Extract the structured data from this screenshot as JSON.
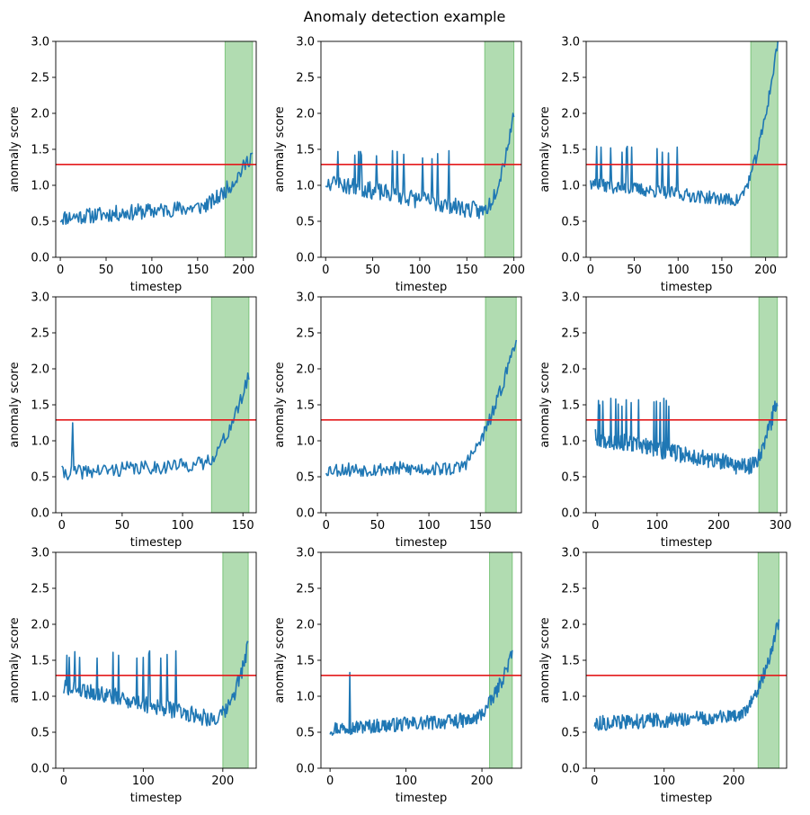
{
  "figure": {
    "title": "Anomaly detection example"
  },
  "colors": {
    "series": "#1f77b4",
    "threshold": "#e41a1c",
    "anomaly_region": "#2ca02c",
    "axes": "#000000"
  },
  "chart_data": [
    {
      "type": "line",
      "xlabel": "timestep",
      "ylabel": "anomaly score",
      "xlim": [
        -5,
        214
      ],
      "ylim": [
        0,
        3
      ],
      "xticks": [
        0,
        50,
        100,
        150,
        200
      ],
      "yticks": [
        0.0,
        0.5,
        1.0,
        1.5,
        2.0,
        2.5,
        3.0
      ],
      "threshold": 1.29,
      "anomaly_region": [
        180,
        210
      ],
      "pattern": {
        "n": 210,
        "base": 0.55,
        "end_base": 0.75,
        "rise_start": 150,
        "end_value": 1.45,
        "noise": 0.11,
        "spike_count": 0,
        "spike_height": 0,
        "spike_until": 0,
        "seed": 11
      },
      "series": [
        {
          "values": []
        }
      ]
    },
    {
      "type": "line",
      "xlabel": "timestep",
      "ylabel": "anomaly score",
      "xlim": [
        -5,
        208
      ],
      "ylim": [
        0,
        3
      ],
      "xticks": [
        0,
        50,
        100,
        150,
        200
      ],
      "yticks": [
        0.0,
        0.5,
        1.0,
        1.5,
        2.0,
        2.5,
        3.0
      ],
      "threshold": 1.29,
      "anomaly_region": [
        169,
        200
      ],
      "pattern": {
        "n": 200,
        "base": 1.05,
        "end_base": 0.55,
        "rise_start": 165,
        "end_value": 2.0,
        "noise": 0.12,
        "spike_count": 14,
        "spike_height": 1.48,
        "spike_until": 145,
        "seed": 23
      },
      "series": [
        {
          "values": []
        }
      ]
    },
    {
      "type": "line",
      "xlabel": "timestep",
      "ylabel": "anomaly score",
      "xlim": [
        -5,
        224
      ],
      "ylim": [
        0,
        3
      ],
      "xticks": [
        0,
        50,
        100,
        150,
        200
      ],
      "yticks": [
        0.0,
        0.5,
        1.0,
        1.5,
        2.0,
        2.5,
        3.0
      ],
      "threshold": 1.29,
      "anomaly_region": [
        183,
        214
      ],
      "pattern": {
        "n": 214,
        "base": 1.02,
        "end_base": 0.72,
        "rise_start": 165,
        "end_value": 3.0,
        "noise": 0.09,
        "spike_count": 12,
        "spike_height": 1.55,
        "spike_until": 140,
        "seed": 37
      },
      "series": [
        {
          "values": []
        }
      ]
    },
    {
      "type": "line",
      "xlabel": "timestep",
      "ylabel": "anomaly score",
      "xlim": [
        -5,
        161
      ],
      "ylim": [
        0,
        3
      ],
      "xticks": [
        0,
        50,
        100,
        150
      ],
      "yticks": [
        0.0,
        0.5,
        1.0,
        1.5,
        2.0,
        2.5,
        3.0
      ],
      "threshold": 1.29,
      "anomaly_region": [
        124,
        155
      ],
      "pattern": {
        "n": 155,
        "base": 0.55,
        "end_base": 0.72,
        "rise_start": 115,
        "end_value": 1.9,
        "noise": 0.1,
        "spike_count": 1,
        "spike_height": 1.35,
        "spike_until": 30,
        "seed": 41
      },
      "series": [
        {
          "values": []
        }
      ]
    },
    {
      "type": "line",
      "xlabel": "timestep",
      "ylabel": "anomaly score",
      "xlim": [
        -5,
        190
      ],
      "ylim": [
        0,
        3
      ],
      "xticks": [
        0,
        50,
        100,
        150
      ],
      "yticks": [
        0.0,
        0.5,
        1.0,
        1.5,
        2.0,
        2.5,
        3.0
      ],
      "threshold": 1.29,
      "anomaly_region": [
        155,
        185
      ],
      "pattern": {
        "n": 185,
        "base": 0.6,
        "end_base": 0.62,
        "rise_start": 125,
        "end_value": 2.45,
        "noise": 0.1,
        "spike_count": 0,
        "spike_height": 0,
        "spike_until": 0,
        "seed": 53
      },
      "series": [
        {
          "values": []
        }
      ]
    },
    {
      "type": "line",
      "xlabel": "timestep",
      "ylabel": "anomaly score",
      "xlim": [
        -15,
        310
      ],
      "ylim": [
        0,
        3
      ],
      "xticks": [
        0,
        100,
        200,
        300
      ],
      "yticks": [
        0.0,
        0.5,
        1.0,
        1.5,
        2.0,
        2.5,
        3.0
      ],
      "threshold": 1.29,
      "anomaly_region": [
        265,
        295
      ],
      "pattern": {
        "n": 295,
        "base": 1.05,
        "end_base": 0.55,
        "rise_start": 245,
        "end_value": 1.6,
        "noise": 0.12,
        "spike_count": 16,
        "spike_height": 1.6,
        "spike_until": 160,
        "seed": 67
      },
      "series": [
        {
          "values": []
        }
      ]
    },
    {
      "type": "line",
      "xlabel": "timestep",
      "ylabel": "anomaly score",
      "xlim": [
        -10,
        242
      ],
      "ylim": [
        0,
        3
      ],
      "xticks": [
        0,
        100,
        200
      ],
      "yticks": [
        0.0,
        0.5,
        1.0,
        1.5,
        2.0,
        2.5,
        3.0
      ],
      "threshold": 1.29,
      "anomaly_region": [
        200,
        232
      ],
      "pattern": {
        "n": 232,
        "base": 1.15,
        "end_base": 0.58,
        "rise_start": 190,
        "end_value": 1.7,
        "noise": 0.12,
        "spike_count": 14,
        "spike_height": 1.65,
        "spike_until": 155,
        "seed": 79
      },
      "series": [
        {
          "values": []
        }
      ]
    },
    {
      "type": "line",
      "xlabel": "timestep",
      "ylabel": "anomaly score",
      "xlim": [
        -12,
        252
      ],
      "ylim": [
        0,
        3
      ],
      "xticks": [
        0,
        100,
        200
      ],
      "yticks": [
        0.0,
        0.5,
        1.0,
        1.5,
        2.0,
        2.5,
        3.0
      ],
      "threshold": 1.29,
      "anomaly_region": [
        210,
        240
      ],
      "pattern": {
        "n": 240,
        "base": 0.55,
        "end_base": 0.7,
        "rise_start": 185,
        "end_value": 1.6,
        "noise": 0.1,
        "spike_count": 1,
        "spike_height": 1.33,
        "spike_until": 90,
        "seed": 97
      },
      "series": [
        {
          "values": []
        }
      ]
    },
    {
      "type": "line",
      "xlabel": "timestep",
      "ylabel": "anomaly score",
      "xlim": [
        -12,
        276
      ],
      "ylim": [
        0,
        3
      ],
      "xticks": [
        0,
        100,
        200
      ],
      "yticks": [
        0.0,
        0.5,
        1.0,
        1.5,
        2.0,
        2.5,
        3.0
      ],
      "threshold": 1.29,
      "anomaly_region": [
        235,
        265
      ],
      "pattern": {
        "n": 265,
        "base": 0.62,
        "end_base": 0.75,
        "rise_start": 205,
        "end_value": 2.05,
        "noise": 0.1,
        "spike_count": 0,
        "spike_height": 0,
        "spike_until": 0,
        "seed": 113
      },
      "series": [
        {
          "values": []
        }
      ]
    }
  ]
}
